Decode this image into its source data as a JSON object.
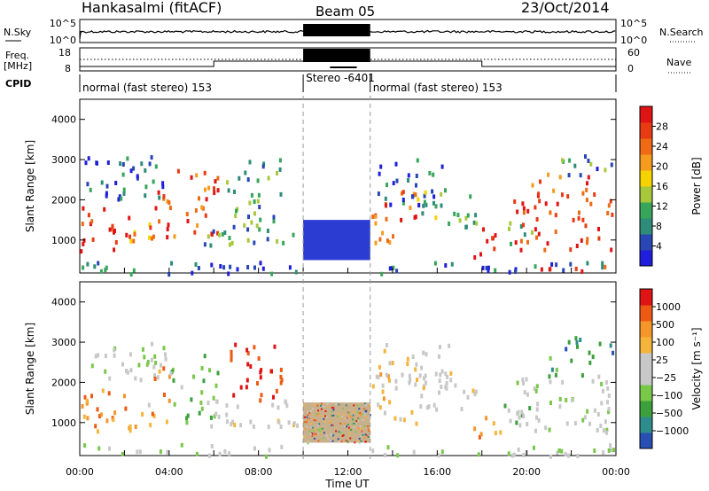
{
  "header": {
    "station": "Hankasalmi (fitACF)",
    "beam": "Beam 05",
    "date": "23/Oct/2014"
  },
  "strip_labels": {
    "nsky": "N.Sky",
    "nsearch": "N.Search",
    "freq": "Freq.",
    "freq_unit": "[MHz]",
    "nave": "Nave",
    "cpid": "CPID",
    "nsky_ticks": [
      "10^5",
      "10^0"
    ],
    "freq_ticks": [
      "18",
      "8"
    ],
    "nave_ticks": [
      "60",
      "0"
    ]
  },
  "cpid_segments": [
    {
      "label": "normal (fast stereo) 153",
      "start_h": 0,
      "end_h": 10
    },
    {
      "label": "Stereo -6401",
      "start_h": 10,
      "end_h": 13
    },
    {
      "label": "normal (fast stereo) 153",
      "start_h": 13,
      "end_h": 24
    }
  ],
  "colors": {
    "power_scale": [
      "#1e1edc",
      "#2846b4",
      "#2e8c78",
      "#37a55a",
      "#a8c83c",
      "#f5d200",
      "#f59b1e",
      "#ee6a14",
      "#e83b14",
      "#e01414"
    ],
    "velocity_scale": [
      "#e01414",
      "#ee5a14",
      "#f5962a",
      "#f5b43c",
      "#c8c8c8",
      "#c8c8c8",
      "#7ac84a",
      "#3ca03c",
      "#2e8c8c",
      "#2850b4"
    ]
  },
  "chart_data": [
    {
      "type": "heatmap",
      "name_key": "power",
      "xlabel": "",
      "ylabel": "Slant Range [km]",
      "xlim": [
        0,
        24
      ],
      "ylim": [
        180,
        4500
      ],
      "yticks": [
        1000,
        2000,
        3000,
        4000
      ],
      "colorbar_label": "Power [dB]",
      "colorbar_ticks": [
        "4",
        "8",
        "12",
        "16",
        "20",
        "24",
        "28"
      ],
      "colorbar_range": [
        0,
        30
      ]
    },
    {
      "type": "heatmap",
      "name_key": "velocity",
      "xlabel": "Time UT",
      "ylabel": "Slant Range [km]",
      "xlim": [
        0,
        24
      ],
      "ylim": [
        180,
        4500
      ],
      "yticks": [
        1000,
        2000,
        3000,
        4000
      ],
      "xticks": [
        "00:00",
        "04:00",
        "08:00",
        "12:00",
        "16:00",
        "20:00",
        "00:00"
      ],
      "colorbar_label": "Velocity [m s⁻¹]",
      "colorbar_ticks": [
        "1000",
        "500",
        "100",
        "25",
        "−25",
        "−100",
        "−500",
        "−1000"
      ]
    }
  ],
  "echo_regions": [
    {
      "h0": 0.0,
      "h1": 2.2,
      "r0": 650,
      "r1": 1850,
      "pw": 27,
      "vel": 2
    },
    {
      "h0": 0.2,
      "h1": 3.8,
      "r0": 2050,
      "r1": 3150,
      "pw": 6,
      "vel": 5
    },
    {
      "h0": 2.2,
      "h1": 3.3,
      "r0": 800,
      "r1": 1500,
      "pw": 18,
      "vel": 3
    },
    {
      "h0": 3.1,
      "h1": 4.0,
      "r0": 900,
      "r1": 2400,
      "pw": 26,
      "vel": 2
    },
    {
      "h0": 4.0,
      "h1": 6.2,
      "r0": 1000,
      "r1": 2800,
      "pw": 24,
      "vel": 6
    },
    {
      "h0": 5.5,
      "h1": 9.7,
      "r0": 900,
      "r1": 1600,
      "pw": 10,
      "vel": 4
    },
    {
      "h0": 6.5,
      "h1": 9.0,
      "r0": 1600,
      "r1": 3100,
      "pw": 9,
      "vel": 0
    },
    {
      "h0": 0.0,
      "h1": 9.9,
      "r0": 200,
      "r1": 500,
      "pw": 5,
      "vel": 5
    },
    {
      "h0": 13.0,
      "h1": 15.2,
      "r0": 900,
      "r1": 2300,
      "pw": 24,
      "vel": 3
    },
    {
      "h0": 13.3,
      "h1": 16.5,
      "r0": 1900,
      "r1": 3150,
      "pw": 6,
      "vel": 4
    },
    {
      "h0": 15.0,
      "h1": 17.7,
      "r0": 1300,
      "r1": 2300,
      "pw": 11,
      "vel": 4
    },
    {
      "h0": 17.6,
      "h1": 18.8,
      "r0": 500,
      "r1": 1400,
      "pw": 25,
      "vel": 2
    },
    {
      "h0": 18.8,
      "h1": 20.2,
      "r0": 900,
      "r1": 1500,
      "pw": 10,
      "vel": 6
    },
    {
      "h0": 19.2,
      "h1": 23.8,
      "r0": 800,
      "r1": 2200,
      "pw": 27,
      "vel": 5
    },
    {
      "h0": 20.2,
      "h1": 22.8,
      "r0": 2200,
      "r1": 2700,
      "pw": 22,
      "vel": 7
    },
    {
      "h0": 21.5,
      "h1": 23.9,
      "r0": 2600,
      "r1": 3200,
      "pw": 8,
      "vel": 8
    },
    {
      "h0": 20.5,
      "h1": 23.5,
      "r0": 200,
      "r1": 450,
      "pw": 28,
      "vel": 5
    },
    {
      "h0": 13.0,
      "h1": 24.0,
      "r0": 200,
      "r1": 500,
      "pw": 5,
      "vel": 5
    }
  ],
  "stereo_block": {
    "h0": 10.0,
    "h1": 13.0,
    "r0": 500,
    "r1": 1500,
    "pw": 3
  }
}
